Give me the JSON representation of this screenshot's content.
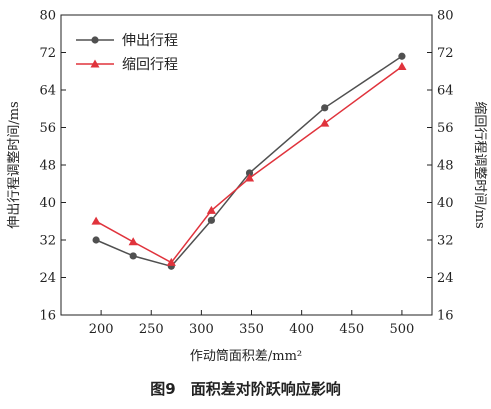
{
  "caption": "图9　面积差对阶跃响应影响",
  "chart_data": {
    "type": "line",
    "xlabel": "作动筒面积差/mm²",
    "ylabel_left": "伸出行程调整时间/ms",
    "ylabel_right": "缩回行程调整时间/ms",
    "xlim": [
      160,
      530
    ],
    "ylim": [
      16,
      80
    ],
    "xticks": [
      200,
      250,
      300,
      350,
      400,
      450,
      500
    ],
    "yticks": [
      16,
      24,
      32,
      40,
      48,
      56,
      64,
      72,
      80
    ],
    "legend_position": "top-left",
    "grid": false,
    "series": [
      {
        "name": "伸出行程",
        "color": "#505050",
        "marker": "circle",
        "x": [
          195,
          232,
          270,
          310,
          348,
          423,
          500
        ],
        "y": [
          32.0,
          28.6,
          26.4,
          36.2,
          46.3,
          60.2,
          71.2
        ]
      },
      {
        "name": "缩回行程",
        "color": "#e0333c",
        "marker": "triangle",
        "x": [
          195,
          232,
          270,
          310,
          348,
          423,
          500
        ],
        "y": [
          36.0,
          31.6,
          27.2,
          38.3,
          45.2,
          56.9,
          69.0
        ]
      }
    ]
  }
}
